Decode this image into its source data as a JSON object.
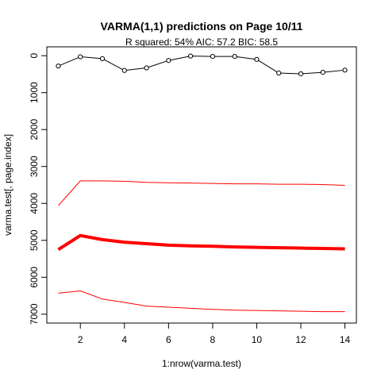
{
  "chart_data": {
    "type": "line",
    "title": "VARMA(1,1) predictions on Page 10/11",
    "subtitle": "R squared: 54% AIC: 57.2 BIC: 58.5",
    "xlabel": "1:nrow(varma.test)",
    "ylabel": "varma.test[, page.index]",
    "xlim": [
      0.48,
      14.52
    ],
    "ylim": [
      -240,
      7240
    ],
    "y_reversed": true,
    "x_ticks": [
      2,
      4,
      6,
      8,
      10,
      12,
      14
    ],
    "y_ticks": [
      0,
      1000,
      2000,
      3000,
      4000,
      5000,
      6000,
      7000
    ],
    "grid": false,
    "x": [
      1,
      2,
      3,
      4,
      5,
      6,
      7,
      8,
      9,
      10,
      11,
      12,
      13,
      14
    ],
    "series": [
      {
        "values": [
          280,
          30,
          80,
          400,
          330,
          130,
          10,
          20,
          20,
          100,
          470,
          490,
          450,
          390
        ],
        "color": "#000000",
        "style": "line-points",
        "width": 1
      },
      {
        "values": [
          4060,
          3390,
          3390,
          3400,
          3430,
          3440,
          3450,
          3460,
          3470,
          3470,
          3480,
          3480,
          3490,
          3510
        ],
        "color": "#ff0000",
        "style": "line",
        "width": 1
      },
      {
        "values": [
          5250,
          4870,
          4980,
          5050,
          5090,
          5130,
          5150,
          5160,
          5180,
          5190,
          5200,
          5210,
          5220,
          5230
        ],
        "color": "#ff0000",
        "style": "line",
        "width": 4
      },
      {
        "values": [
          6430,
          6370,
          6590,
          6680,
          6780,
          6810,
          6840,
          6870,
          6890,
          6900,
          6910,
          6920,
          6930,
          6930
        ],
        "color": "#ff0000",
        "style": "line",
        "width": 1
      }
    ]
  }
}
